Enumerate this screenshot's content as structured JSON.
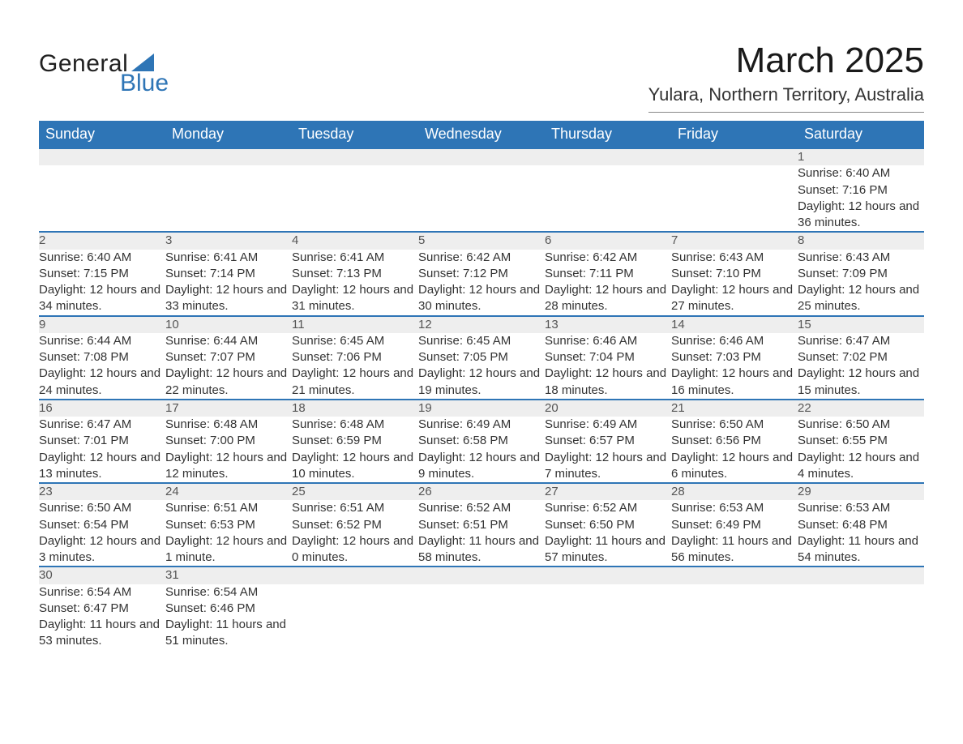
{
  "logo": {
    "line1": "General",
    "line2": "Blue"
  },
  "title": "March 2025",
  "location": "Yulara, Northern Territory, Australia",
  "brand_color": "#2e75b6",
  "header_bg": "#2e75b6",
  "header_fg": "#ffffff",
  "stripe_bg": "#eeeeee",
  "text_color": "#333333",
  "weekdays": [
    "Sunday",
    "Monday",
    "Tuesday",
    "Wednesday",
    "Thursday",
    "Friday",
    "Saturday"
  ],
  "weeks": [
    [
      null,
      null,
      null,
      null,
      null,
      null,
      {
        "n": "1",
        "sr": "6:40 AM",
        "ss": "7:16 PM",
        "dl": "12 hours and 36 minutes."
      }
    ],
    [
      {
        "n": "2",
        "sr": "6:40 AM",
        "ss": "7:15 PM",
        "dl": "12 hours and 34 minutes."
      },
      {
        "n": "3",
        "sr": "6:41 AM",
        "ss": "7:14 PM",
        "dl": "12 hours and 33 minutes."
      },
      {
        "n": "4",
        "sr": "6:41 AM",
        "ss": "7:13 PM",
        "dl": "12 hours and 31 minutes."
      },
      {
        "n": "5",
        "sr": "6:42 AM",
        "ss": "7:12 PM",
        "dl": "12 hours and 30 minutes."
      },
      {
        "n": "6",
        "sr": "6:42 AM",
        "ss": "7:11 PM",
        "dl": "12 hours and 28 minutes."
      },
      {
        "n": "7",
        "sr": "6:43 AM",
        "ss": "7:10 PM",
        "dl": "12 hours and 27 minutes."
      },
      {
        "n": "8",
        "sr": "6:43 AM",
        "ss": "7:09 PM",
        "dl": "12 hours and 25 minutes."
      }
    ],
    [
      {
        "n": "9",
        "sr": "6:44 AM",
        "ss": "7:08 PM",
        "dl": "12 hours and 24 minutes."
      },
      {
        "n": "10",
        "sr": "6:44 AM",
        "ss": "7:07 PM",
        "dl": "12 hours and 22 minutes."
      },
      {
        "n": "11",
        "sr": "6:45 AM",
        "ss": "7:06 PM",
        "dl": "12 hours and 21 minutes."
      },
      {
        "n": "12",
        "sr": "6:45 AM",
        "ss": "7:05 PM",
        "dl": "12 hours and 19 minutes."
      },
      {
        "n": "13",
        "sr": "6:46 AM",
        "ss": "7:04 PM",
        "dl": "12 hours and 18 minutes."
      },
      {
        "n": "14",
        "sr": "6:46 AM",
        "ss": "7:03 PM",
        "dl": "12 hours and 16 minutes."
      },
      {
        "n": "15",
        "sr": "6:47 AM",
        "ss": "7:02 PM",
        "dl": "12 hours and 15 minutes."
      }
    ],
    [
      {
        "n": "16",
        "sr": "6:47 AM",
        "ss": "7:01 PM",
        "dl": "12 hours and 13 minutes."
      },
      {
        "n": "17",
        "sr": "6:48 AM",
        "ss": "7:00 PM",
        "dl": "12 hours and 12 minutes."
      },
      {
        "n": "18",
        "sr": "6:48 AM",
        "ss": "6:59 PM",
        "dl": "12 hours and 10 minutes."
      },
      {
        "n": "19",
        "sr": "6:49 AM",
        "ss": "6:58 PM",
        "dl": "12 hours and 9 minutes."
      },
      {
        "n": "20",
        "sr": "6:49 AM",
        "ss": "6:57 PM",
        "dl": "12 hours and 7 minutes."
      },
      {
        "n": "21",
        "sr": "6:50 AM",
        "ss": "6:56 PM",
        "dl": "12 hours and 6 minutes."
      },
      {
        "n": "22",
        "sr": "6:50 AM",
        "ss": "6:55 PM",
        "dl": "12 hours and 4 minutes."
      }
    ],
    [
      {
        "n": "23",
        "sr": "6:50 AM",
        "ss": "6:54 PM",
        "dl": "12 hours and 3 minutes."
      },
      {
        "n": "24",
        "sr": "6:51 AM",
        "ss": "6:53 PM",
        "dl": "12 hours and 1 minute."
      },
      {
        "n": "25",
        "sr": "6:51 AM",
        "ss": "6:52 PM",
        "dl": "12 hours and 0 minutes."
      },
      {
        "n": "26",
        "sr": "6:52 AM",
        "ss": "6:51 PM",
        "dl": "11 hours and 58 minutes."
      },
      {
        "n": "27",
        "sr": "6:52 AM",
        "ss": "6:50 PM",
        "dl": "11 hours and 57 minutes."
      },
      {
        "n": "28",
        "sr": "6:53 AM",
        "ss": "6:49 PM",
        "dl": "11 hours and 56 minutes."
      },
      {
        "n": "29",
        "sr": "6:53 AM",
        "ss": "6:48 PM",
        "dl": "11 hours and 54 minutes."
      }
    ],
    [
      {
        "n": "30",
        "sr": "6:54 AM",
        "ss": "6:47 PM",
        "dl": "11 hours and 53 minutes."
      },
      {
        "n": "31",
        "sr": "6:54 AM",
        "ss": "6:46 PM",
        "dl": "11 hours and 51 minutes."
      },
      null,
      null,
      null,
      null,
      null
    ]
  ],
  "labels": {
    "sunrise": "Sunrise: ",
    "sunset": "Sunset: ",
    "daylight": "Daylight: "
  }
}
